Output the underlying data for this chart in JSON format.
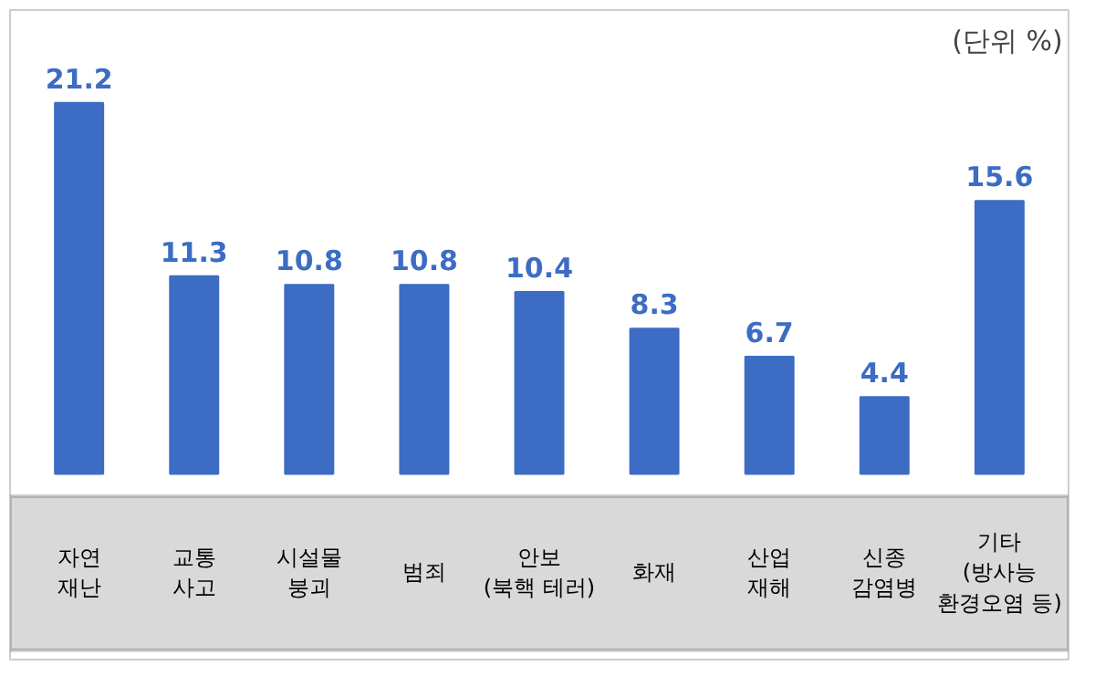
{
  "chart_data": {
    "type": "bar",
    "categories": [
      "자연\n재난",
      "교통\n사고",
      "시설물\n붕괴",
      "범죄",
      "안보\n(북핵 테러)",
      "화재",
      "산업\n재해",
      "신종\n감염병",
      "기타\n(방사능\n환경오염 등)"
    ],
    "values": [
      21.2,
      11.3,
      10.8,
      10.8,
      10.4,
      8.3,
      6.7,
      4.4,
      15.6
    ],
    "color": "#3d6cc4",
    "data_labels": true,
    "annotations": [
      "(단위 %)"
    ]
  }
}
